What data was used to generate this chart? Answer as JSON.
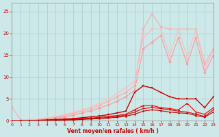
{
  "xlabel": "Vent moyen/en rafales ( km/h )",
  "background_color": "#cce8e8",
  "grid_color": "#aacccc",
  "x_values": [
    0,
    1,
    2,
    3,
    4,
    5,
    6,
    7,
    8,
    9,
    10,
    11,
    12,
    13,
    14,
    15,
    16,
    17,
    18,
    19,
    20,
    21,
    22,
    23
  ],
  "ylim": [
    0,
    27
  ],
  "xlim": [
    0,
    23
  ],
  "yticks": [
    0,
    5,
    10,
    15,
    20,
    25
  ],
  "lines": [
    {
      "color": "#ffaaaa",
      "linewidth": 0.8,
      "marker": "D",
      "markersize": 2.0,
      "y": [
        3.2,
        0.2,
        0.2,
        0.3,
        0.5,
        0.8,
        1.2,
        1.7,
        2.2,
        2.8,
        3.5,
        4.5,
        5.5,
        6.5,
        8.0,
        21.0,
        24.5,
        21.5,
        21.0,
        21.0,
        21.0,
        21.0,
        13.0,
        16.5
      ]
    },
    {
      "color": "#ffbbbb",
      "linewidth": 0.8,
      "marker": "D",
      "markersize": 2.0,
      "y": [
        0.0,
        0.1,
        0.2,
        0.4,
        0.7,
        1.0,
        1.4,
        1.9,
        2.5,
        3.2,
        4.0,
        5.0,
        6.2,
        7.5,
        9.0,
        19.0,
        21.0,
        21.0,
        15.0,
        21.0,
        14.5,
        21.0,
        12.0,
        16.0
      ]
    },
    {
      "color": "#ff9999",
      "linewidth": 0.8,
      "marker": "D",
      "markersize": 2.0,
      "y": [
        0.0,
        0.0,
        0.1,
        0.2,
        0.4,
        0.6,
        0.9,
        1.3,
        1.8,
        2.3,
        2.9,
        3.6,
        4.5,
        5.5,
        7.0,
        16.5,
        18.0,
        19.5,
        13.5,
        19.0,
        13.0,
        19.0,
        11.0,
        15.0
      ]
    },
    {
      "color": "#cc0000",
      "linewidth": 1.0,
      "marker": "s",
      "markersize": 2.0,
      "y": [
        0.0,
        0.0,
        0.0,
        0.1,
        0.2,
        0.3,
        0.4,
        0.5,
        0.7,
        0.9,
        1.1,
        1.4,
        1.8,
        2.2,
        6.5,
        8.0,
        7.5,
        6.5,
        5.5,
        5.0,
        5.0,
        5.0,
        3.0,
        5.5
      ]
    },
    {
      "color": "#ee0000",
      "linewidth": 0.8,
      "marker": "^",
      "markersize": 1.8,
      "y": [
        0.0,
        0.0,
        0.0,
        0.1,
        0.1,
        0.2,
        0.3,
        0.4,
        0.5,
        0.6,
        0.8,
        1.0,
        1.2,
        1.5,
        2.5,
        3.5,
        3.5,
        3.0,
        2.8,
        2.5,
        4.0,
        2.0,
        1.5,
        3.0
      ]
    },
    {
      "color": "#dd0000",
      "linewidth": 0.8,
      "marker": "v",
      "markersize": 1.8,
      "y": [
        0.0,
        0.0,
        0.0,
        0.0,
        0.1,
        0.2,
        0.2,
        0.3,
        0.4,
        0.5,
        0.6,
        0.8,
        1.0,
        1.3,
        2.0,
        2.8,
        3.0,
        2.8,
        2.5,
        2.2,
        2.0,
        1.5,
        1.0,
        2.5
      ]
    },
    {
      "color": "#bb0000",
      "linewidth": 0.8,
      "marker": "o",
      "markersize": 1.5,
      "y": [
        0.0,
        0.0,
        0.0,
        0.0,
        0.0,
        0.1,
        0.2,
        0.2,
        0.3,
        0.4,
        0.5,
        0.6,
        0.8,
        1.0,
        1.5,
        2.2,
        2.5,
        2.3,
        2.0,
        1.8,
        1.7,
        1.2,
        0.8,
        2.0
      ]
    }
  ]
}
